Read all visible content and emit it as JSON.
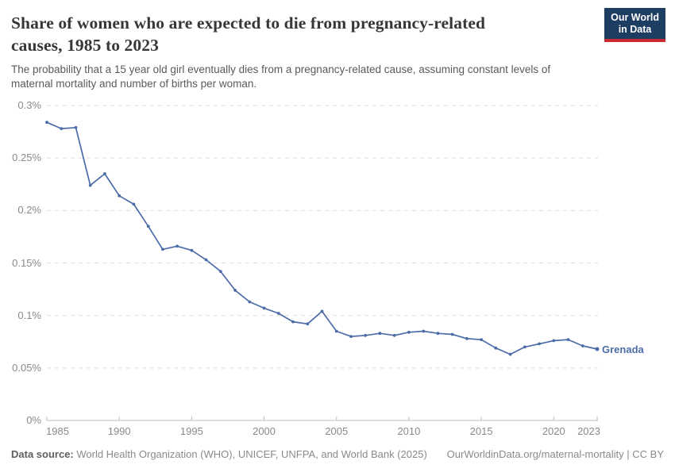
{
  "header": {
    "title_line1": "Share of women who are expected to die from pregnancy-related",
    "title_line2": "causes, 1985 to 2023",
    "subtitle_line1": "The probability that a 15 year old girl eventually dies from a pregnancy-related cause, assuming constant levels of",
    "subtitle_line2": "maternal mortality and number of births per woman.",
    "logo": {
      "line1": "Our World",
      "line2": "in Data"
    }
  },
  "chart_data": {
    "type": "line",
    "title": "Share of women who are expected to die from pregnancy-related causes, 1985 to 2023",
    "unit": "%",
    "xlim": [
      1985,
      2023
    ],
    "ylim": [
      0,
      0.3
    ],
    "grid": "horizontal-dashed",
    "legend_position": "end-of-line",
    "x_ticks": [
      1985,
      1990,
      1995,
      2000,
      2005,
      2010,
      2015,
      2020,
      2023
    ],
    "y_ticks": [
      {
        "value": 0,
        "label": "0%"
      },
      {
        "value": 0.05,
        "label": "0.05%"
      },
      {
        "value": 0.1,
        "label": "0.1%"
      },
      {
        "value": 0.15,
        "label": "0.15%"
      },
      {
        "value": 0.2,
        "label": "0.2%"
      },
      {
        "value": 0.25,
        "label": "0.25%"
      },
      {
        "value": 0.3,
        "label": "0.3%"
      }
    ],
    "series": [
      {
        "name": "Grenada",
        "color": "#4c6ca8",
        "x": [
          1985,
          1986,
          1987,
          1988,
          1989,
          1990,
          1991,
          1992,
          1993,
          1994,
          1995,
          1996,
          1997,
          1998,
          1999,
          2000,
          2001,
          2002,
          2003,
          2004,
          2005,
          2006,
          2007,
          2008,
          2009,
          2010,
          2011,
          2012,
          2013,
          2014,
          2015,
          2016,
          2017,
          2018,
          2019,
          2020,
          2021,
          2022,
          2023
        ],
        "y": [
          0.284,
          0.278,
          0.279,
          0.224,
          0.235,
          0.214,
          0.206,
          0.185,
          0.163,
          0.166,
          0.162,
          0.153,
          0.142,
          0.124,
          0.113,
          0.107,
          0.102,
          0.094,
          0.092,
          0.104,
          0.085,
          0.08,
          0.081,
          0.083,
          0.081,
          0.084,
          0.085,
          0.083,
          0.082,
          0.078,
          0.077,
          0.069,
          0.063,
          0.07,
          0.073,
          0.076,
          0.077,
          0.071,
          0.068
        ]
      }
    ]
  },
  "footer": {
    "source_label": "Data source:",
    "source_text": " World Health Organization (WHO), UNICEF, UNFPA, and World Bank (2025)",
    "link_text": "OurWorldinData.org/maternal-mortality | CC BY"
  },
  "colors": {
    "line": "#4c6ca8",
    "grid": "#dedede",
    "axis": "#bdbdbd",
    "tick_label": "#8a8a8a",
    "title": "#383636",
    "subtitle": "#5a5a5a",
    "logo_bg": "#1d3d63",
    "logo_red": "#cc2a32"
  }
}
